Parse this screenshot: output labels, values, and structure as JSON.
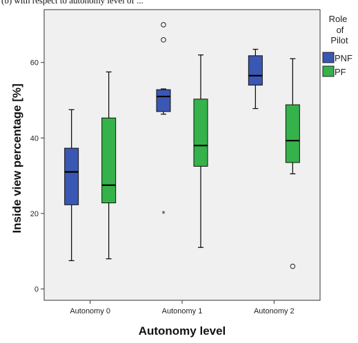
{
  "caption_fragment": "(b) with respect to autonomy level of ...",
  "chart_data": {
    "type": "boxplot",
    "title": "",
    "xlabel": "Autonomy level",
    "ylabel": "Inside view percentage [%]",
    "categories": [
      "Autonomy 0",
      "Autonomy 1",
      "Autonomy 2"
    ],
    "ylim": [
      -3,
      74
    ],
    "yticks": [
      0,
      20,
      40,
      60
    ],
    "grid": false,
    "legend": {
      "title_lines": [
        "Role",
        "of",
        "Pilot"
      ],
      "placement": "right"
    },
    "colors": {
      "PNF": "#3a57b3",
      "PF": "#35b24a",
      "plot_bg": "#f0f0f0",
      "axis": "#333333"
    },
    "series": [
      {
        "name": "PNF",
        "boxes": [
          {
            "category": "Autonomy 0",
            "min": 7.5,
            "q1": 22.3,
            "median": 31,
            "q3": 37.3,
            "max": 47.5,
            "outliers": [],
            "extremes": []
          },
          {
            "category": "Autonomy 1",
            "min": 46.3,
            "q1": 47,
            "median": 51,
            "q3": 52.8,
            "max": 53,
            "outliers": [
              66,
              70
            ],
            "extremes": [
              20
            ]
          },
          {
            "category": "Autonomy 2",
            "min": 47.8,
            "q1": 54,
            "median": 56.5,
            "q3": 61.8,
            "max": 63.5,
            "outliers": [],
            "extremes": []
          }
        ]
      },
      {
        "name": "PF",
        "boxes": [
          {
            "category": "Autonomy 0",
            "min": 8,
            "q1": 22.8,
            "median": 27.5,
            "q3": 45.3,
            "max": 57.5,
            "outliers": [],
            "extremes": []
          },
          {
            "category": "Autonomy 1",
            "min": 11,
            "q1": 32.5,
            "median": 38,
            "q3": 50.3,
            "max": 62,
            "outliers": [],
            "extremes": []
          },
          {
            "category": "Autonomy 2",
            "min": 30.5,
            "q1": 33.5,
            "median": 39.3,
            "q3": 48.8,
            "max": 61,
            "outliers": [
              6
            ],
            "extremes": []
          }
        ]
      }
    ]
  }
}
